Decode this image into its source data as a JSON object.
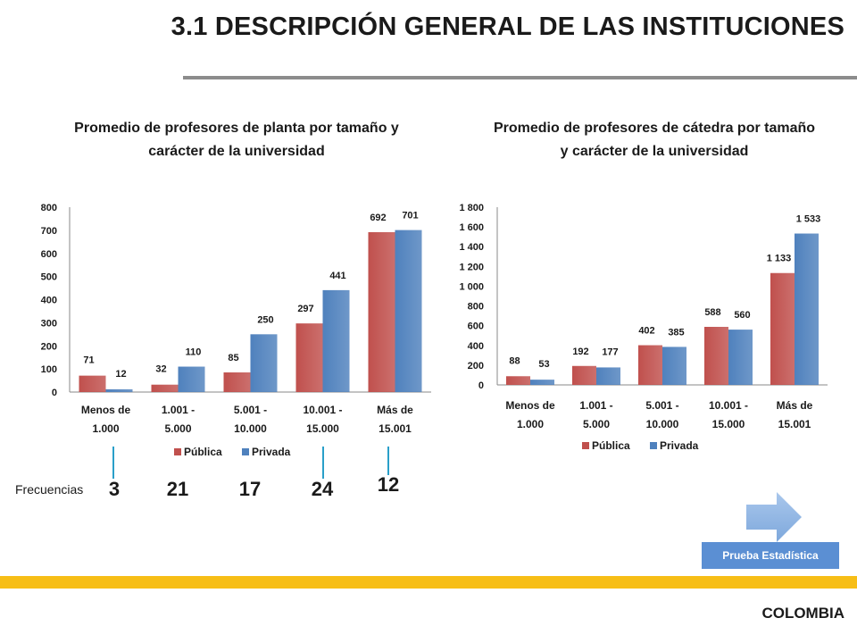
{
  "header": {
    "title": "3.1 DESCRIPCIÓN GENERAL DE LAS INSTITUCIONES"
  },
  "chart_data": [
    {
      "type": "bar",
      "title": "Promedio de profesores de planta por tamaño y carácter de la universidad",
      "categories": [
        [
          "Menos de",
          "1.000"
        ],
        [
          "1.001 -",
          "5.000"
        ],
        [
          "5.001 -",
          "10.000"
        ],
        [
          "10.001 -",
          "15.000"
        ],
        [
          "Más de",
          "15.001"
        ]
      ],
      "series": [
        {
          "name": "Pública",
          "color": "#c0504d",
          "values": [
            71,
            32,
            85,
            297,
            692
          ],
          "labels": [
            "71",
            "32",
            "85",
            "297",
            "692"
          ]
        },
        {
          "name": "Privada",
          "color": "#4f81bd",
          "values": [
            12,
            110,
            250,
            441,
            701
          ],
          "labels": [
            "12",
            "110",
            "250",
            "441",
            "701"
          ]
        }
      ],
      "ylim": [
        0,
        800
      ],
      "yticks": [
        0,
        100,
        200,
        300,
        400,
        500,
        600,
        700,
        800
      ],
      "ytick_labels": [
        "0",
        "100",
        "200",
        "300",
        "400",
        "500",
        "600",
        "700",
        "800"
      ],
      "legend": "bottom",
      "grid": false
    },
    {
      "type": "bar",
      "title": "Promedio de profesores de cátedra por tamaño y carácter de la universidad",
      "categories": [
        [
          "Menos de",
          "1.000"
        ],
        [
          "1.001 -",
          "5.000"
        ],
        [
          "5.001 -",
          "10.000"
        ],
        [
          "10.001 -",
          "15.000"
        ],
        [
          "Más de",
          "15.001"
        ]
      ],
      "series": [
        {
          "name": "Pública",
          "color": "#c0504d",
          "values": [
            88,
            192,
            402,
            588,
            1133
          ],
          "labels": [
            "88",
            "192",
            "402",
            "588",
            "1 133"
          ]
        },
        {
          "name": "Privada",
          "color": "#4f81bd",
          "values": [
            53,
            177,
            385,
            560,
            1533
          ],
          "labels": [
            "53",
            "177",
            "385",
            "560",
            "1 533"
          ]
        }
      ],
      "ylim": [
        0,
        1800
      ],
      "yticks": [
        0,
        200,
        400,
        600,
        800,
        1000,
        1200,
        1400,
        1600,
        1800
      ],
      "ytick_labels": [
        "0",
        "200",
        "400",
        "600",
        "800",
        "1 000",
        "1 200",
        "1 400",
        "1 600",
        "1 800"
      ],
      "legend": "bottom",
      "grid": false
    }
  ],
  "frequencies": {
    "label": "Frecuencias",
    "values": [
      "3",
      "21",
      "17",
      "24",
      "12"
    ]
  },
  "actions": {
    "test_label": "Prueba Estadística"
  },
  "footer": {
    "country": "COLOMBIA"
  }
}
